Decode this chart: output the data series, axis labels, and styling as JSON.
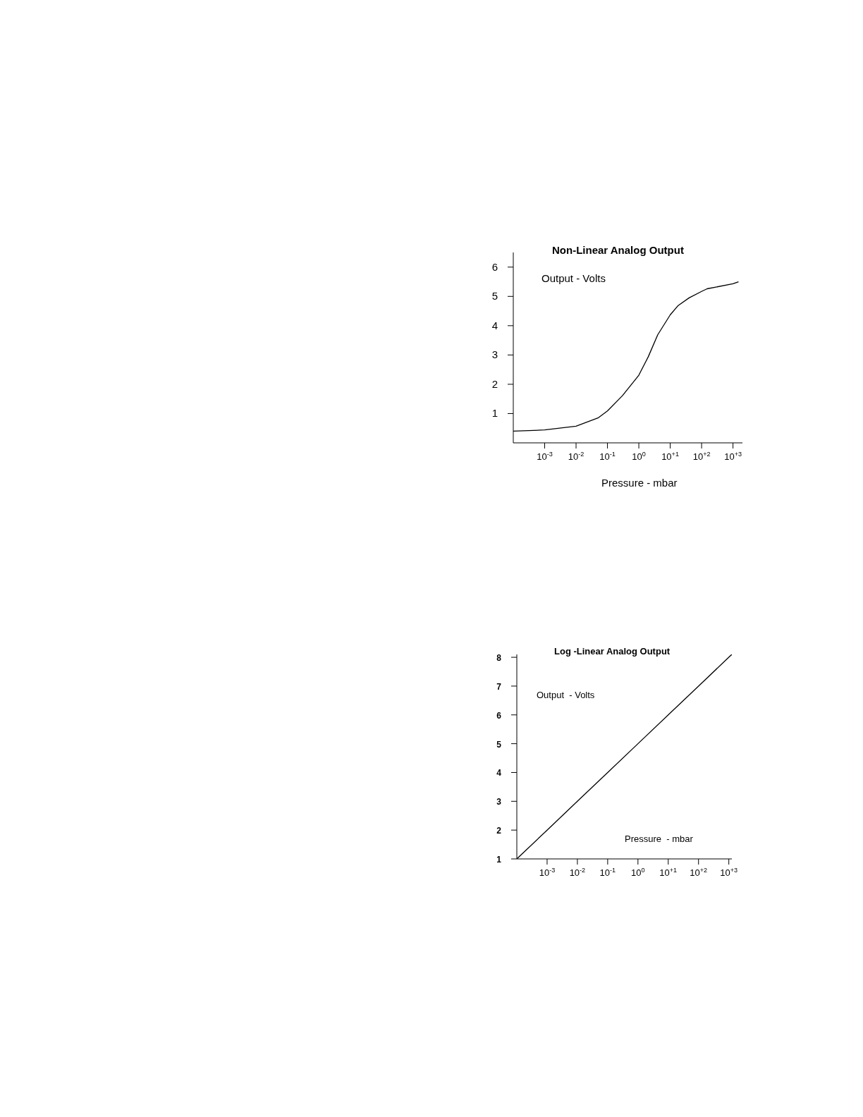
{
  "chart_data": [
    {
      "type": "line",
      "title": "Non-Linear Analog Output",
      "xlabel": "Pressure - mbar",
      "ylabel": "Output - Volts",
      "log": "x",
      "grid": false,
      "legend": false,
      "marker": "none",
      "line_style": "solid",
      "xlim": [
        0.0001,
        2000
      ],
      "ylim": [
        0,
        6.5
      ],
      "xticks": [
        {
          "value": 0.001,
          "label": "10$^{-3}$"
        },
        {
          "value": 0.01,
          "label": "10$^{-2}$"
        },
        {
          "value": 0.1,
          "label": "10$^{-1}$"
        },
        {
          "value": 1,
          "label": "10$^{0}$"
        },
        {
          "value": 10,
          "label": "10$^{+1}$"
        },
        {
          "value": 100,
          "label": "10$^{+2}$"
        },
        {
          "value": 1000,
          "label": "10$^{+3}$"
        }
      ],
      "yticks": [
        1,
        2,
        3,
        4,
        5,
        6
      ],
      "series": [
        {
          "color": "#000000",
          "x": [
            0.0001,
            0.001,
            0.01,
            0.05,
            0.1,
            0.3,
            1,
            2,
            4,
            10,
            18,
            40,
            100,
            150,
            1000,
            1500
          ],
          "values": [
            0.4,
            0.44,
            0.57,
            0.85,
            1.09,
            1.61,
            2.31,
            2.94,
            3.69,
            4.37,
            4.69,
            4.95,
            5.17,
            5.26,
            5.43,
            5.5
          ]
        }
      ]
    },
    {
      "type": "line",
      "title": "Log -Linear Analog Output",
      "xlabel": "Pressure  - mbar",
      "ylabel": "Output  - Volts",
      "log": "x",
      "grid": false,
      "legend": false,
      "marker": "none",
      "line_style": "solid",
      "xlim": [
        0.0001,
        1260
      ],
      "ylim": [
        1,
        8.1
      ],
      "xticks": [
        {
          "value": 0.001,
          "label": "10$^{-3}$"
        },
        {
          "value": 0.01,
          "label": "10$^{-2}$"
        },
        {
          "value": 0.1,
          "label": "10$^{-1}$"
        },
        {
          "value": 1,
          "label": "10$^{0}$"
        },
        {
          "value": 10,
          "label": "10$^{+1}$"
        },
        {
          "value": 100,
          "label": "10$^{+2}$"
        },
        {
          "value": 1000,
          "label": "10$^{+3}$"
        }
      ],
      "yticks": [
        1,
        2,
        3,
        4,
        5,
        6,
        7,
        8
      ],
      "series": [
        {
          "color": "#000000",
          "x": [
            0.0001,
            0.001,
            0.01,
            0.1,
            1,
            10,
            100,
            1000,
            1260
          ],
          "values": [
            1,
            2,
            3,
            4,
            5,
            6,
            7,
            8,
            8.1
          ]
        }
      ]
    }
  ]
}
